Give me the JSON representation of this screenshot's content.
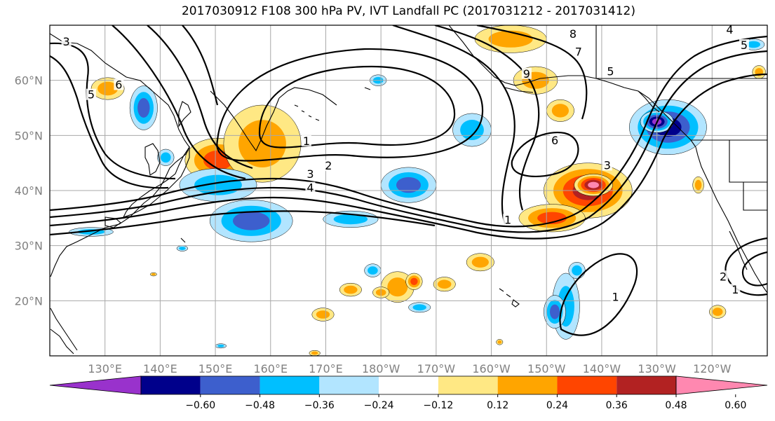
{
  "title": "2017030912 F108 300 hPa PV, IVT Landfall PC (2017031212 - 2017031412)",
  "map": {
    "lon_range": [
      120,
      250
    ],
    "lat_range": [
      10,
      70
    ],
    "lon_ticks": [
      {
        "lon": 130,
        "label": "130°E"
      },
      {
        "lon": 140,
        "label": "140°E"
      },
      {
        "lon": 150,
        "label": "150°E"
      },
      {
        "lon": 160,
        "label": "160°E"
      },
      {
        "lon": 170,
        "label": "170°E"
      },
      {
        "lon": 180,
        "label": "180°W"
      },
      {
        "lon": 190,
        "label": "170°W"
      },
      {
        "lon": 200,
        "label": "160°W"
      },
      {
        "lon": 210,
        "label": "150°W"
      },
      {
        "lon": 220,
        "label": "140°W"
      },
      {
        "lon": 230,
        "label": "130°W"
      },
      {
        "lon": 240,
        "label": "120°W"
      }
    ],
    "lat_ticks": [
      {
        "lat": 20,
        "label": "20°N"
      },
      {
        "lat": 30,
        "label": "30°N"
      },
      {
        "lat": 40,
        "label": "40°N"
      },
      {
        "lat": 50,
        "label": "50°N"
      },
      {
        "lat": 60,
        "label": "60°N"
      }
    ],
    "contour_labels": [
      {
        "text": "1",
        "lon": 166.5,
        "lat": 48.8
      },
      {
        "text": "2",
        "lon": 170.5,
        "lat": 44.3
      },
      {
        "text": "3",
        "lon": 167.2,
        "lat": 42.8
      },
      {
        "text": "4",
        "lon": 167.2,
        "lat": 40.3
      },
      {
        "text": "1",
        "lon": 203.0,
        "lat": 34.5
      },
      {
        "text": "6",
        "lon": 211.5,
        "lat": 48.9
      },
      {
        "text": "3",
        "lon": 221.0,
        "lat": 44.4
      },
      {
        "text": "8",
        "lon": 214.8,
        "lat": 68.2
      },
      {
        "text": "7",
        "lon": 215.8,
        "lat": 65.0
      },
      {
        "text": "9",
        "lon": 206.4,
        "lat": 61.0
      },
      {
        "text": "5",
        "lon": 221.6,
        "lat": 61.4
      },
      {
        "text": "3",
        "lon": 123.0,
        "lat": 66.8
      },
      {
        "text": "5",
        "lon": 127.5,
        "lat": 57.2
      },
      {
        "text": "6",
        "lon": 132.5,
        "lat": 59.0
      },
      {
        "text": "1",
        "lon": 222.5,
        "lat": 20.5
      },
      {
        "text": "1",
        "lon": 244.2,
        "lat": 21.8
      },
      {
        "text": "2",
        "lon": 242.0,
        "lat": 24.2
      },
      {
        "text": "5",
        "lon": 245.8,
        "lat": 66.2
      },
      {
        "text": "4",
        "lon": 243.2,
        "lat": 69.0
      }
    ],
    "anomaly_blobs": [
      {
        "lon": 150.5,
        "lat": 45.5,
        "rx": 6.0,
        "ry": 4.0,
        "value": 0.4
      },
      {
        "lon": 158.5,
        "lat": 48.5,
        "rx": 7.0,
        "ry": 7.0,
        "value": 0.26
      },
      {
        "lon": 156.5,
        "lat": 34.5,
        "rx": 7.5,
        "ry": 3.8,
        "value": -0.45
      },
      {
        "lon": 150.5,
        "lat": 41.0,
        "rx": 7.0,
        "ry": 3.0,
        "value": -0.28
      },
      {
        "lon": 130.5,
        "lat": 58.5,
        "rx": 3.0,
        "ry": 2.0,
        "value": 0.26
      },
      {
        "lon": 137.0,
        "lat": 55.0,
        "rx": 2.5,
        "ry": 4.0,
        "value": -0.4
      },
      {
        "lon": 141.0,
        "lat": 46.0,
        "rx": 1.5,
        "ry": 1.5,
        "value": -0.28
      },
      {
        "lon": 127.5,
        "lat": 32.5,
        "rx": 4.0,
        "ry": 0.8,
        "value": -0.3
      },
      {
        "lon": 174.5,
        "lat": 34.8,
        "rx": 5.0,
        "ry": 1.5,
        "value": -0.26
      },
      {
        "lon": 179.5,
        "lat": 60.0,
        "rx": 1.5,
        "ry": 1.0,
        "value": -0.26
      },
      {
        "lon": 185.0,
        "lat": 41.0,
        "rx": 5.0,
        "ry": 3.2,
        "value": -0.38
      },
      {
        "lon": 196.5,
        "lat": 51.0,
        "rx": 3.5,
        "ry": 3.0,
        "value": -0.28
      },
      {
        "lon": 217.5,
        "lat": 40.0,
        "rx": 8.0,
        "ry": 5.0,
        "value": 0.5
      },
      {
        "lon": 218.5,
        "lat": 41.0,
        "rx": 3.5,
        "ry": 2.0,
        "value": 0.62
      },
      {
        "lon": 211.0,
        "lat": 35.0,
        "rx": 6.0,
        "ry": 2.5,
        "value": 0.36
      },
      {
        "lon": 203.5,
        "lat": 67.5,
        "rx": 6.5,
        "ry": 2.5,
        "value": 0.28
      },
      {
        "lon": 208.0,
        "lat": 60.0,
        "rx": 4.0,
        "ry": 2.5,
        "value": 0.26
      },
      {
        "lon": 212.5,
        "lat": 54.5,
        "rx": 2.5,
        "ry": 2.0,
        "value": 0.26
      },
      {
        "lon": 232.0,
        "lat": 51.5,
        "rx": 7.0,
        "ry": 5.0,
        "value": -0.55
      },
      {
        "lon": 230.0,
        "lat": 52.5,
        "rx": 3.0,
        "ry": 2.0,
        "value": -0.66
      },
      {
        "lon": 237.5,
        "lat": 41.0,
        "rx": 1.0,
        "ry": 1.5,
        "value": 0.26
      },
      {
        "lon": 213.5,
        "lat": 19.0,
        "rx": 2.5,
        "ry": 6.0,
        "value": -0.3
      },
      {
        "lon": 211.5,
        "lat": 18.0,
        "rx": 2.0,
        "ry": 3.0,
        "value": -0.45
      },
      {
        "lon": 215.5,
        "lat": 25.5,
        "rx": 1.5,
        "ry": 1.5,
        "value": -0.28
      },
      {
        "lon": 183.0,
        "lat": 22.5,
        "rx": 3.0,
        "ry": 2.8,
        "value": 0.3
      },
      {
        "lon": 186.0,
        "lat": 23.5,
        "rx": 1.5,
        "ry": 1.5,
        "value": 0.4
      },
      {
        "lon": 174.5,
        "lat": 22.0,
        "rx": 2.0,
        "ry": 1.2,
        "value": 0.26
      },
      {
        "lon": 180.0,
        "lat": 21.5,
        "rx": 1.5,
        "ry": 1.0,
        "value": 0.26
      },
      {
        "lon": 178.5,
        "lat": 25.5,
        "rx": 1.5,
        "ry": 1.2,
        "value": -0.35
      },
      {
        "lon": 187.0,
        "lat": 18.8,
        "rx": 2.0,
        "ry": 0.9,
        "value": -0.28
      },
      {
        "lon": 191.5,
        "lat": 23.0,
        "rx": 2.0,
        "ry": 1.3,
        "value": 0.26
      },
      {
        "lon": 169.5,
        "lat": 17.5,
        "rx": 2.0,
        "ry": 1.2,
        "value": 0.26
      },
      {
        "lon": 198.0,
        "lat": 27.0,
        "rx": 2.5,
        "ry": 1.6,
        "value": 0.26
      },
      {
        "lon": 241.0,
        "lat": 18.0,
        "rx": 1.5,
        "ry": 1.2,
        "value": 0.26
      },
      {
        "lon": 248.5,
        "lat": 61.5,
        "rx": 1.2,
        "ry": 1.2,
        "value": 0.26
      },
      {
        "lon": 247.5,
        "lat": 66.5,
        "rx": 2.0,
        "ry": 1.0,
        "value": -0.26
      },
      {
        "lon": 144.0,
        "lat": 29.5,
        "rx": 1.0,
        "ry": 0.5,
        "value": -0.26
      },
      {
        "lon": 138.8,
        "lat": 24.8,
        "rx": 0.6,
        "ry": 0.3,
        "value": 0.26
      },
      {
        "lon": 151.0,
        "lat": 11.8,
        "rx": 1.0,
        "ry": 0.4,
        "value": -0.26
      },
      {
        "lon": 168.0,
        "lat": 10.5,
        "rx": 1.0,
        "ry": 0.5,
        "value": 0.26
      },
      {
        "lon": 201.5,
        "lat": 12.5,
        "rx": 0.6,
        "ry": 0.5,
        "value": 0.26
      }
    ]
  },
  "colorbar": {
    "levels": [
      "−0.60",
      "−0.48",
      "−0.36",
      "−0.24",
      "−0.12",
      "0.12",
      "0.24",
      "0.36",
      "0.48",
      "0.60"
    ],
    "colors": [
      "#9932cc",
      "#00008b",
      "#3d5fcd",
      "#00bfff",
      "#b2e5ff",
      "#ffffff",
      "#ffe884",
      "#ffa500",
      "#ff4500",
      "#b22222",
      "#ff88b0"
    ]
  }
}
